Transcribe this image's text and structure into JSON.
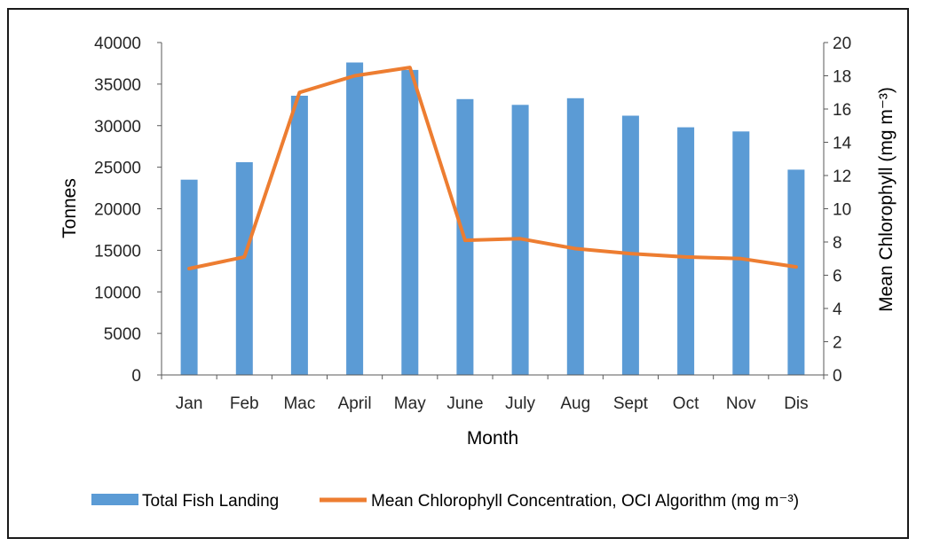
{
  "chart_data": {
    "type": "bar",
    "title": "",
    "xlabel": "Month",
    "ylabel": "Tonnes",
    "y2label": "Mean Chlorophyll (mg m⁻³)",
    "categories": [
      "Jan",
      "Feb",
      "Mac",
      "April",
      "May",
      "June",
      "July",
      "Aug",
      "Sept",
      "Oct",
      "Nov",
      "Dis"
    ],
    "ylim": [
      0,
      40000
    ],
    "y2lim": [
      0,
      20
    ],
    "yticks": [
      "0",
      "5000",
      "10000",
      "15000",
      "20000",
      "25000",
      "30000",
      "35000",
      "40000"
    ],
    "y2ticks": [
      "0",
      "2",
      "4",
      "6",
      "8",
      "10",
      "12",
      "14",
      "16",
      "18",
      "20"
    ],
    "grid": false,
    "legend_position": "bottom",
    "series": [
      {
        "name": "Total Fish Landing",
        "type": "bar",
        "axis": "left",
        "color": "#5B9BD5",
        "values": [
          23500,
          25600,
          33600,
          37600,
          36700,
          33200,
          32500,
          33300,
          31200,
          29800,
          29300,
          24700
        ]
      },
      {
        "name": "Mean Chlorophyll Concentration, OCI Algorithm (mg m⁻³)",
        "type": "line",
        "axis": "right",
        "color": "#ED7D31",
        "values": [
          6.4,
          7.1,
          17.0,
          18.0,
          18.5,
          8.1,
          8.2,
          7.6,
          7.3,
          7.1,
          7.0,
          6.5
        ]
      }
    ]
  }
}
